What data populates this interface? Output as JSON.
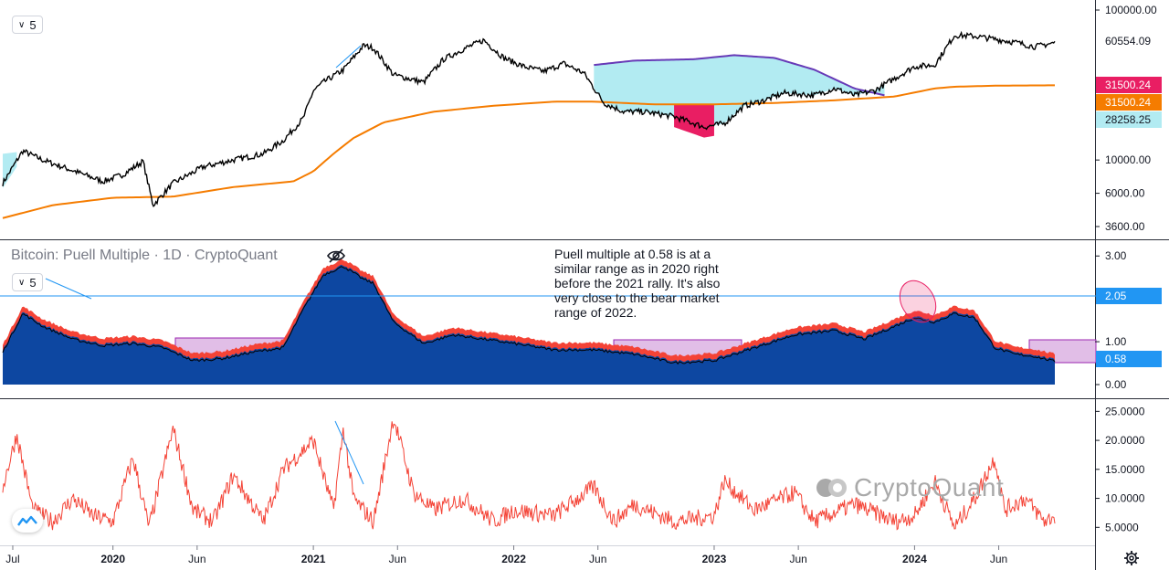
{
  "price_pane": {
    "interval_label": "5",
    "axis_ticks": [
      {
        "label": "100000.00",
        "value": 100000
      },
      {
        "label": "10000.00",
        "value": 10000
      },
      {
        "label": "6000.00",
        "value": 6000
      },
      {
        "label": "3600.00",
        "value": 3600
      }
    ],
    "badges": [
      {
        "label": "60554.09",
        "value": 60554.09,
        "bg": "#ffffff",
        "fg": "#131722"
      },
      {
        "label": "31500.24",
        "value": 31500.24,
        "bg": "#e91e63",
        "fg": "#ffffff"
      },
      {
        "label": "31500.24",
        "value": 31500.24,
        "bg": "#f57c00",
        "fg": "#ffffff"
      },
      {
        "label": "28258.25",
        "value": 28258.25,
        "bg": "#b2ebf2",
        "fg": "#131722"
      }
    ]
  },
  "puell_pane": {
    "title": "Bitcoin: Puell Multiple · 1D · CryptoQuant",
    "interval_label": "5",
    "axis_ticks": [
      {
        "label": "3.00",
        "value": 3.0
      },
      {
        "label": "1.00",
        "value": 1.0
      },
      {
        "label": "0.00",
        "value": 0.0
      }
    ],
    "badges": [
      {
        "label": "2.05",
        "value": 2.05,
        "bg": "#2196f3",
        "fg": "#ffffff"
      },
      {
        "label": "0.58",
        "value": 0.58,
        "bg": "#2196f3",
        "fg": "#ffffff"
      }
    ],
    "horizontal_line": 2.05,
    "annotation": "Puell multiple at 0.58 is at a\nsimilar range as in 2020 right\nbefore the 2021 rally. It's also\nvery close to the bear market\nrange of 2022."
  },
  "osc_pane": {
    "axis_ticks": [
      {
        "label": "25.0000",
        "value": 25
      },
      {
        "label": "20.0000",
        "value": 20
      },
      {
        "label": "15.0000",
        "value": 15
      },
      {
        "label": "10.0000",
        "value": 10
      },
      {
        "label": "5.0000",
        "value": 5
      }
    ]
  },
  "time_axis": {
    "ticks": [
      {
        "label": "Jul",
        "date": 2019.5,
        "bold": false
      },
      {
        "label": "2020",
        "date": 2020.0,
        "bold": true
      },
      {
        "label": "Jun",
        "date": 2020.42,
        "bold": false
      },
      {
        "label": "2021",
        "date": 2021.0,
        "bold": true
      },
      {
        "label": "Jun",
        "date": 2021.42,
        "bold": false
      },
      {
        "label": "2022",
        "date": 2022.0,
        "bold": true
      },
      {
        "label": "Jun",
        "date": 2022.42,
        "bold": false
      },
      {
        "label": "2023",
        "date": 2023.0,
        "bold": true
      },
      {
        "label": "Jun",
        "date": 2023.42,
        "bold": false
      },
      {
        "label": "2024",
        "date": 2024.0,
        "bold": true
      },
      {
        "label": "Jun",
        "date": 2024.42,
        "bold": false
      }
    ]
  },
  "watermark": "CryptoQuant",
  "colors": {
    "price_line": "#000000",
    "ma_line": "#f57c00",
    "band_line": "#673ab7",
    "band_fill": "#b2ebf2",
    "under_fill": "#e91e63",
    "puell_fill": "#0d47a1",
    "puell_hot": "#f44336",
    "osc_line": "#f44336",
    "zone_fill": "#e1bee7",
    "ref_line": "#2196f3"
  },
  "chart_data": [
    {
      "type": "line",
      "pane": "Bitcoin price (log scale)",
      "y_scale": "log",
      "ylim": [
        3600,
        100000
      ],
      "series": [
        {
          "x": [
            2019.45,
            2019.55,
            2019.65,
            2019.8,
            2019.95,
            2020.05,
            2020.15,
            2020.2,
            2020.3,
            2020.45,
            2020.6,
            2020.75,
            2020.85,
            2020.95,
            2021.0,
            2021.05,
            2021.15,
            2021.25,
            2021.3,
            2021.4,
            2021.55,
            2021.65,
            2021.75,
            2021.85,
            2021.95,
            2022.05,
            2022.15,
            2022.25,
            2022.35,
            2022.45,
            2022.55,
            2022.65,
            2022.8,
            2022.95,
            2023.05,
            2023.15,
            2023.25,
            2023.35,
            2023.5,
            2023.6,
            2023.7,
            2023.8,
            2023.9,
            2024.0,
            2024.1,
            2024.2,
            2024.3,
            2024.4,
            2024.5,
            2024.6,
            2024.7
          ],
          "y": [
            7000,
            11500,
            10000,
            8500,
            7200,
            8000,
            9800,
            5000,
            7000,
            9000,
            10000,
            11000,
            13500,
            19000,
            29000,
            33000,
            40000,
            58000,
            56000,
            37000,
            33000,
            47000,
            55000,
            63000,
            48000,
            42000,
            39000,
            44000,
            38000,
            24000,
            21000,
            21000,
            19500,
            16600,
            17500,
            23000,
            25000,
            28000,
            27000,
            30000,
            27000,
            29000,
            35000,
            42000,
            43000,
            68000,
            67000,
            64000,
            61000,
            57000,
            60554
          ]
        },
        {
          "x": [
            2019.45,
            2019.7,
            2020.0,
            2020.3,
            2020.6,
            2020.9,
            2021.0,
            2021.1,
            2021.2,
            2021.35,
            2021.6,
            2021.9,
            2022.2,
            2022.4,
            2022.7,
            2023.0,
            2023.3,
            2023.6,
            2023.9,
            2024.1,
            2024.2,
            2024.4,
            2024.7
          ],
          "y": [
            4100,
            5000,
            5600,
            5700,
            6600,
            7200,
            8400,
            11000,
            14000,
            17800,
            21000,
            23000,
            24500,
            24500,
            23500,
            23500,
            24000,
            25000,
            26500,
            30000,
            30800,
            31300,
            31500
          ]
        }
      ]
    },
    {
      "type": "area",
      "pane": "Bitcoin: Puell Multiple · 1D · CryptoQuant",
      "ylim": [
        0,
        3.2
      ],
      "series": [
        {
          "x": [
            2019.45,
            2019.55,
            2019.65,
            2019.8,
            2019.95,
            2020.1,
            2020.25,
            2020.4,
            2020.55,
            2020.7,
            2020.85,
            2020.95,
            2021.05,
            2021.15,
            2021.25,
            2021.3,
            2021.4,
            2021.55,
            2021.7,
            2021.85,
            2022.0,
            2022.2,
            2022.4,
            2022.6,
            2022.8,
            2023.0,
            2023.2,
            2023.4,
            2023.6,
            2023.75,
            2023.9,
            2024.0,
            2024.1,
            2024.2,
            2024.3,
            2024.4,
            2024.5,
            2024.6,
            2024.7
          ],
          "y": [
            0.8,
            1.7,
            1.4,
            1.1,
            0.95,
            1.0,
            0.9,
            0.6,
            0.65,
            0.8,
            0.9,
            1.8,
            2.6,
            2.8,
            2.5,
            2.4,
            1.5,
            1.0,
            1.2,
            1.1,
            1.0,
            0.85,
            0.85,
            0.75,
            0.55,
            0.6,
            0.9,
            1.2,
            1.3,
            1.1,
            1.4,
            1.6,
            1.5,
            1.7,
            1.6,
            0.9,
            0.75,
            0.7,
            0.58
          ]
        }
      ]
    },
    {
      "type": "line",
      "pane": "oscillator",
      "ylim": [
        3,
        26
      ],
      "series": [
        {
          "x": [
            2019.45,
            2019.52,
            2019.6,
            2019.7,
            2019.8,
            2019.9,
            2020.0,
            2020.1,
            2020.18,
            2020.3,
            2020.4,
            2020.5,
            2020.6,
            2020.75,
            2020.85,
            2021.0,
            2021.1,
            2021.15,
            2021.2,
            2021.3,
            2021.4,
            2021.5,
            2021.6,
            2021.75,
            2021.9,
            2022.0,
            2022.2,
            2022.4,
            2022.5,
            2022.6,
            2022.8,
            2023.0,
            2023.05,
            2023.2,
            2023.4,
            2023.5,
            2023.7,
            2023.9,
            2024.0,
            2024.1,
            2024.2,
            2024.3,
            2024.4,
            2024.45,
            2024.55,
            2024.65,
            2024.7
          ],
          "y": [
            12,
            21,
            8,
            6,
            10,
            7,
            6,
            17,
            5,
            22,
            8,
            6,
            14,
            6,
            15,
            20,
            8,
            22,
            10,
            6,
            24,
            11,
            8,
            10,
            6,
            8,
            7,
            12,
            6,
            9,
            6,
            7,
            13,
            8,
            11,
            6,
            9,
            6,
            7,
            13,
            5,
            10,
            17,
            8,
            10,
            6,
            7
          ]
        }
      ]
    }
  ]
}
